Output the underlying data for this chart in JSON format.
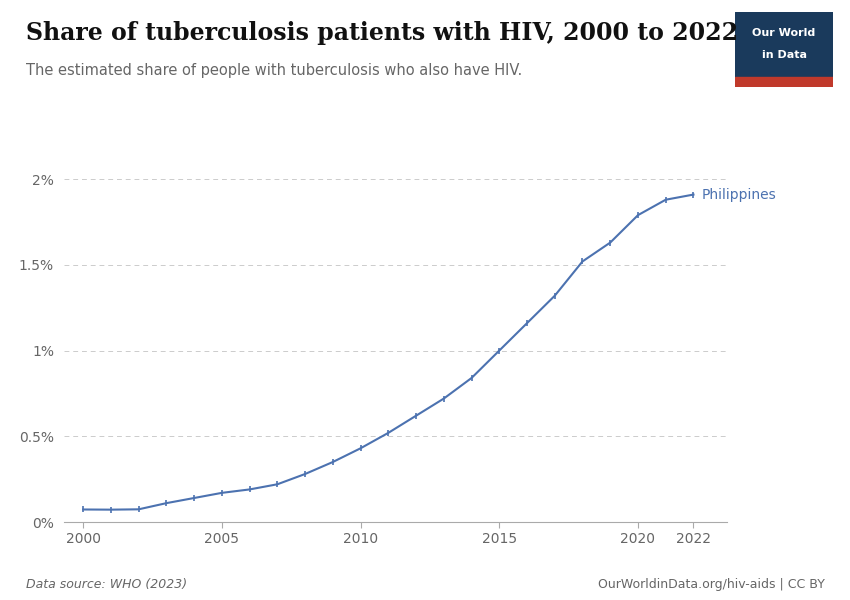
{
  "title": "Share of tuberculosis patients with HIV, 2000 to 2022",
  "subtitle": "The estimated share of people with tuberculosis who also have HIV.",
  "footnote_left": "Data source: WHO (2023)",
  "footnote_right": "OurWorldinData.org/hiv-aids | CC BY",
  "line_color": "#4C72B0",
  "label": "Philippines",
  "background_color": "#ffffff",
  "years": [
    2000,
    2001,
    2002,
    2003,
    2004,
    2005,
    2006,
    2007,
    2008,
    2009,
    2010,
    2011,
    2012,
    2013,
    2014,
    2015,
    2016,
    2017,
    2018,
    2019,
    2020,
    2021,
    2022
  ],
  "values": [
    0.073,
    0.072,
    0.074,
    0.11,
    0.14,
    0.17,
    0.19,
    0.22,
    0.28,
    0.35,
    0.43,
    0.52,
    0.62,
    0.72,
    0.84,
    1.0,
    1.16,
    1.32,
    1.52,
    1.63,
    1.79,
    1.88,
    1.91
  ],
  "ylim": [
    0,
    0.021
  ],
  "yticks": [
    0,
    0.005,
    0.01,
    0.015,
    0.02
  ],
  "ytick_labels": [
    "0%",
    "0.5%",
    "1%",
    "1.5%",
    "2%"
  ],
  "xticks": [
    2000,
    2005,
    2010,
    2015,
    2020,
    2022
  ],
  "title_fontsize": 17,
  "subtitle_fontsize": 10.5,
  "footnote_fontsize": 9,
  "axis_fontsize": 10,
  "label_fontsize": 10,
  "owid_box_color": "#1a3a5c",
  "owid_box_red": "#c0392b",
  "owid_text_color": "#ffffff",
  "grid_color": "#cccccc",
  "spine_color": "#aaaaaa",
  "text_color": "#333333",
  "muted_color": "#666666"
}
